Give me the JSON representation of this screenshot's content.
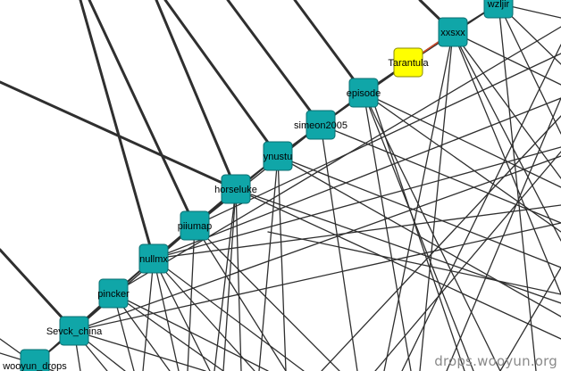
{
  "watermark": "drops.wooyun.org",
  "colors": {
    "node_fill": "#10a6a8",
    "node_stroke": "#0a6e70",
    "highlight_fill": "#ffff00",
    "highlight_stroke": "#8a8a00",
    "edge": "#2f2f2f",
    "highlight_edge": "#d04a2a"
  },
  "nodes": [
    {
      "id": "wzljir",
      "label": "wzljir",
      "highlight": false
    },
    {
      "id": "xxsxx",
      "label": "xxsxx",
      "highlight": false
    },
    {
      "id": "tarantula",
      "label": "Tarantula",
      "highlight": true
    },
    {
      "id": "episode",
      "label": "episode",
      "highlight": false
    },
    {
      "id": "simeon2005",
      "label": "simeon2005",
      "highlight": false
    },
    {
      "id": "ynustu",
      "label": "ynustu",
      "highlight": false
    },
    {
      "id": "horseluke",
      "label": "horseluke",
      "highlight": false
    },
    {
      "id": "piiumap",
      "label": "piiumap",
      "highlight": false
    },
    {
      "id": "nullmx",
      "label": "nullmx",
      "highlight": false
    },
    {
      "id": "pincker",
      "label": "pincker",
      "highlight": false
    },
    {
      "id": "sevck_china",
      "label": "Sevck_china",
      "highlight": false
    },
    {
      "id": "wooyun_drops",
      "label": "wooyun_drops",
      "highlight": false
    }
  ]
}
